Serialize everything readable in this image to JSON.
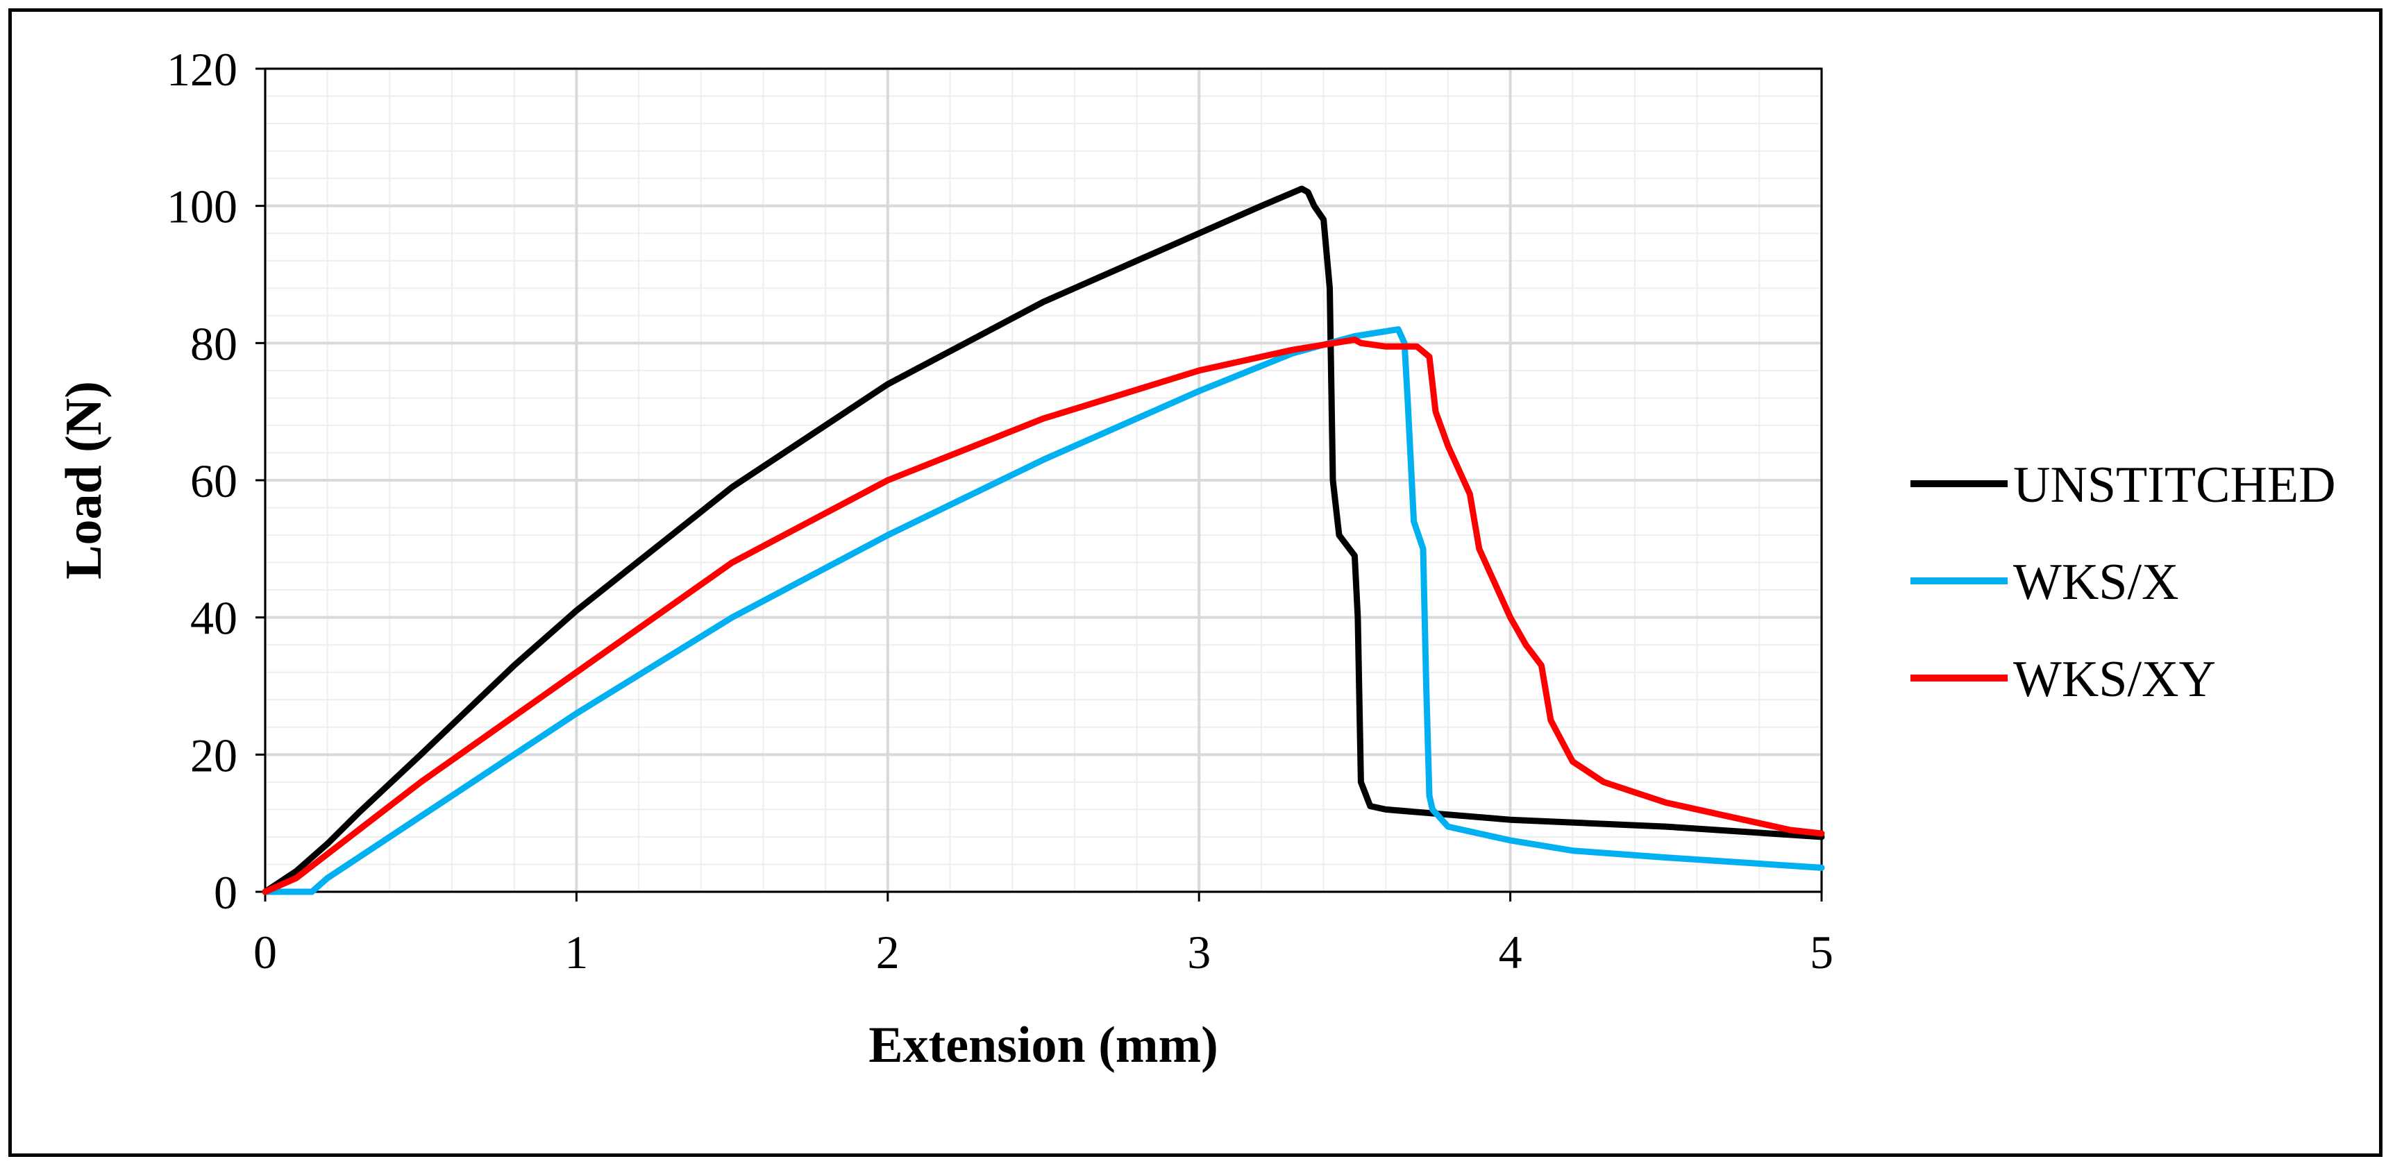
{
  "chart_data": {
    "type": "line",
    "title": "",
    "xlabel": "Extension (mm)",
    "ylabel": "Load (N)",
    "xlim": [
      0,
      5
    ],
    "ylim": [
      0,
      120
    ],
    "x_ticks": [
      "0",
      "1",
      "2",
      "3",
      "4",
      "5"
    ],
    "y_ticks": [
      "0",
      "20",
      "40",
      "60",
      "80",
      "100",
      "120"
    ],
    "grid": true,
    "legend_position": "right",
    "series": [
      {
        "name": "UNSTITCHED",
        "color": "#000000",
        "x": [
          0,
          0.1,
          0.2,
          0.3,
          0.5,
          0.8,
          1.0,
          1.5,
          2.0,
          2.5,
          3.0,
          3.2,
          3.33,
          3.35,
          3.37,
          3.4,
          3.42,
          3.43,
          3.45,
          3.5,
          3.51,
          3.52,
          3.55,
          3.6,
          4.0,
          4.5,
          5.0
        ],
        "y": [
          0,
          3,
          7,
          11.5,
          20,
          33,
          41,
          59,
          74,
          86,
          96,
          100,
          102.5,
          102,
          100,
          98,
          88,
          60,
          52,
          49,
          40,
          16,
          12.5,
          12,
          10.5,
          9.5,
          8
        ]
      },
      {
        "name": "WKS/X",
        "color": "#00B0F0",
        "x": [
          0,
          0.15,
          0.2,
          0.3,
          0.5,
          1.0,
          1.5,
          2.0,
          2.5,
          3.0,
          3.3,
          3.5,
          3.64,
          3.66,
          3.67,
          3.69,
          3.72,
          3.73,
          3.74,
          3.75,
          3.8,
          4.0,
          4.2,
          4.5,
          5.0
        ],
        "y": [
          0,
          0,
          2,
          5,
          11,
          26,
          40,
          52,
          63,
          73,
          78.5,
          81,
          82,
          80,
          72,
          54,
          50,
          30,
          14,
          12,
          9.5,
          7.5,
          6,
          5,
          3.5
        ]
      },
      {
        "name": "WKS/XY",
        "color": "#FF0000",
        "x": [
          0,
          0.1,
          0.3,
          0.5,
          1.0,
          1.5,
          2.0,
          2.5,
          3.0,
          3.3,
          3.5,
          3.52,
          3.6,
          3.7,
          3.74,
          3.76,
          3.8,
          3.85,
          3.87,
          3.9,
          4.0,
          4.05,
          4.1,
          4.13,
          4.2,
          4.3,
          4.5,
          4.7,
          4.9,
          5.0
        ],
        "y": [
          0,
          2,
          9,
          16,
          32,
          48,
          60,
          69,
          76,
          79,
          80.5,
          80,
          79.5,
          79.5,
          78,
          70,
          65,
          60,
          58,
          50,
          40,
          36,
          33,
          25,
          19,
          16,
          13,
          11,
          9,
          8.5
        ]
      }
    ]
  }
}
